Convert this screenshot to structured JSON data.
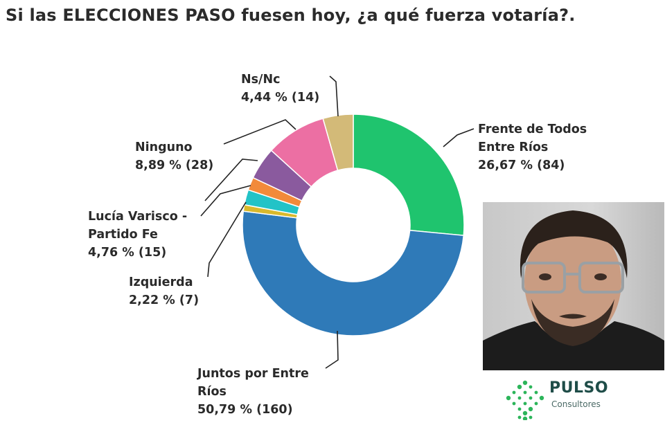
{
  "title": "Si las ELECCIONES PASO fuesen hoy, ¿a qué fuerza votaría?.",
  "chart_data": {
    "type": "pie",
    "variant": "donut",
    "title": "Si las ELECCIONES PASO fuesen hoy, ¿a qué fuerza votaría?.",
    "slices": [
      {
        "key": "frente",
        "name": "Frente de Todos Entre Ríos",
        "percent": 26.67,
        "count": 84,
        "color": "#1fc46e",
        "label_lines": [
          "Frente de Todos",
          "Entre Ríos",
          "26,67 % (84)"
        ]
      },
      {
        "key": "juntos",
        "name": "Juntos por Entre Ríos",
        "percent": 50.79,
        "count": 160,
        "color": "#2f7ab8",
        "label_lines": [
          "Juntos por Entre",
          "Ríos",
          "50,79 % (160)"
        ]
      },
      {
        "key": "other1",
        "name": "",
        "percent": 0.95,
        "count": 3,
        "color": "#d9b92c",
        "label_lines": []
      },
      {
        "key": "izquierda",
        "name": "Izquierda",
        "percent": 2.22,
        "count": 7,
        "color": "#22c3c7",
        "label_lines": [
          "Izquierda",
          "2,22 % (7)"
        ]
      },
      {
        "key": "other2",
        "name": "",
        "percent": 1.9,
        "count": 6,
        "color": "#f28a3a",
        "label_lines": []
      },
      {
        "key": "lucia",
        "name": "Lucía Varisco - Partido Fe",
        "percent": 4.76,
        "count": 15,
        "color": "#8a5a9e",
        "label_lines": [
          "Lucía Varisco -",
          "Partido Fe",
          "4,76 % (15)"
        ]
      },
      {
        "key": "ninguno",
        "name": "Ninguno",
        "percent": 8.89,
        "count": 28,
        "color": "#ec6fa3",
        "label_lines": [
          "Ninguno",
          "8,89 % (28)"
        ]
      },
      {
        "key": "nsnc",
        "name": "Ns/Nc",
        "percent": 4.44,
        "count": 14,
        "color": "#d3ba78",
        "label_lines": [
          "Ns/Nc",
          "4,44 % (14)"
        ]
      }
    ]
  },
  "logo": {
    "name": "PULSO",
    "subtitle": "Consultores",
    "color": "#2cb55a"
  },
  "photo": {
    "description_icon": "person-portrait-icon"
  }
}
